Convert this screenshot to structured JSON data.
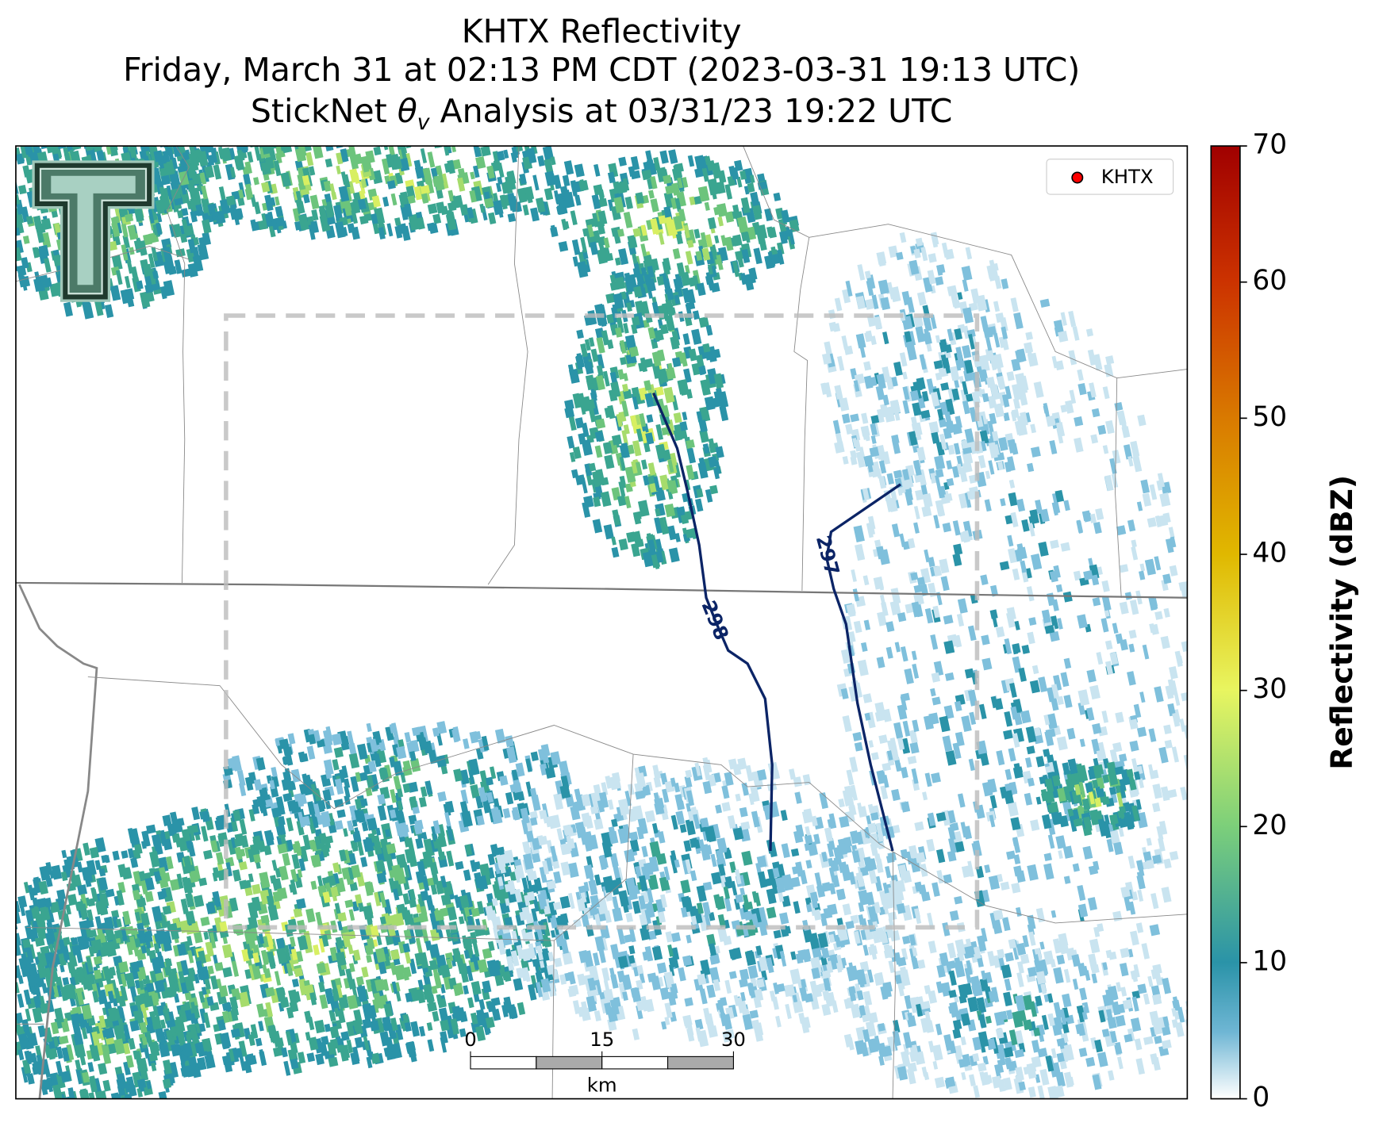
{
  "header": {
    "title": "KHTX Reflectivity",
    "subtitle": "Friday, March 31 at 02:13 PM CDT (2023-03-31 19:13 UTC)",
    "analysis": {
      "prefix": "StickNet ",
      "symbol": "θ",
      "subscript": "v",
      "suffix": " Analysis at 03/31/23 19:22 UTC"
    }
  },
  "legend": {
    "label": "KHTX",
    "marker_color": "#ff0000"
  },
  "contours": [
    {
      "label": "298",
      "color": "#0b2466"
    },
    {
      "label": "297",
      "color": "#0b2466"
    }
  ],
  "scale_bar": {
    "ticks": [
      0,
      15,
      30
    ],
    "unit": "km"
  },
  "colorbar": {
    "label": "Reflectivity (dBZ)",
    "lim": [
      0,
      70
    ],
    "ticks": [
      0,
      10,
      20,
      30,
      40,
      50,
      60,
      70
    ]
  }
}
